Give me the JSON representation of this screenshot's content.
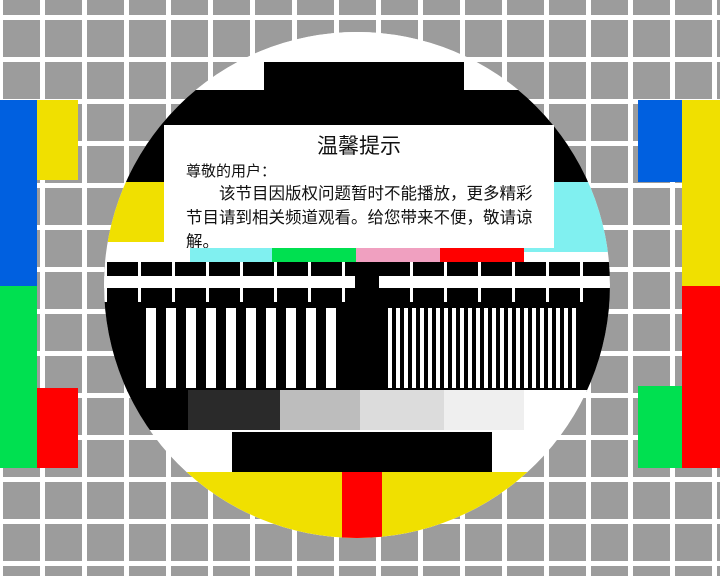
{
  "notice": {
    "title": "温馨提示",
    "greeting": "尊敬的用户：",
    "body": "该节目因版权问题暂时不能播放，更多精彩节目请到相关频道观看。给您带来不便，敬请谅解。"
  },
  "colors": {
    "grid_background": "#9c9c9c",
    "grid_lines": "#ffffff",
    "blue": "#0060e0",
    "yellow": "#f0e000",
    "green": "#00e050",
    "red": "#ff0000",
    "cyan": "#80f0f0",
    "pink": "#f0a0c0"
  }
}
